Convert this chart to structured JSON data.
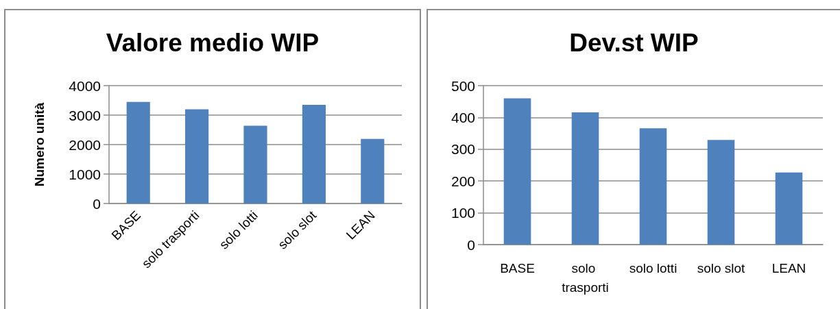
{
  "chart_data": [
    {
      "type": "bar",
      "title": "Valore medio WIP",
      "ylabel": "Numero unità",
      "categories": [
        "BASE",
        "solo trasporti",
        "solo lotti",
        "solo slot",
        "LEAN"
      ],
      "values": [
        3450,
        3200,
        2640,
        3350,
        2190
      ],
      "color": "#4f81bd",
      "ylim": [
        0,
        4000
      ],
      "yticks": [
        0,
        1000,
        2000,
        3000,
        4000
      ],
      "grid": "y"
    },
    {
      "type": "bar",
      "title": "Dev.st WIP",
      "categories": [
        "BASE",
        "solo trasporti",
        "solo lotti",
        "solo slot",
        "LEAN"
      ],
      "values": [
        460,
        416,
        366,
        329,
        227
      ],
      "color": "#4f81bd",
      "ylim": [
        0,
        500
      ],
      "yticks": [
        0,
        100,
        200,
        300,
        400,
        500
      ],
      "grid": "y"
    }
  ]
}
